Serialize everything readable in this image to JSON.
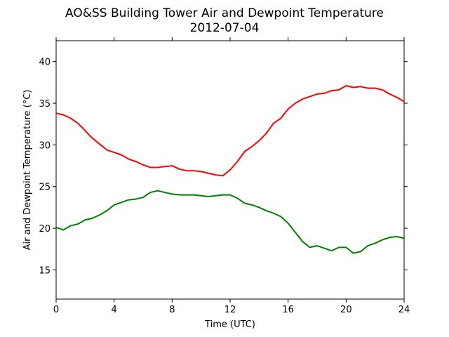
{
  "chart_data": {
    "type": "line",
    "title": "AO&SS Building Tower Air and Dewpoint Temperature",
    "subtitle": "2012-07-04",
    "xlabel": "Time (UTC)",
    "ylabel": "Air and Dewpoint Temperature (°C)",
    "xlim": [
      0,
      24
    ],
    "ylim": [
      11.5,
      42.5
    ],
    "xticks": [
      0,
      4,
      8,
      12,
      16,
      20,
      24
    ],
    "yticks": [
      15,
      20,
      25,
      30,
      35,
      40
    ],
    "grid": false,
    "legend": "none",
    "series": [
      {
        "color": "#ff0000",
        "x": [
          0,
          0.5,
          1,
          1.5,
          2,
          2.5,
          3,
          3.5,
          4,
          4.5,
          5,
          5.5,
          6,
          6.5,
          7,
          7.5,
          8,
          8.5,
          9,
          9.5,
          10,
          10.5,
          11,
          11.5,
          12,
          12.5,
          13,
          13.5,
          14,
          14.5,
          15,
          15.5,
          16,
          16.5,
          17,
          17.5,
          18,
          18.5,
          19,
          19.5,
          20,
          20.5,
          21,
          21.5,
          22,
          22.5,
          23,
          23.5,
          24
        ],
        "y": [
          33.8,
          33.6,
          33.2,
          32.6,
          31.7,
          30.8,
          30.1,
          29.4,
          29.1,
          28.8,
          28.3,
          28.0,
          27.6,
          27.3,
          27.3,
          27.4,
          27.5,
          27.1,
          26.9,
          26.9,
          26.8,
          26.6,
          26.4,
          26.3,
          27.0,
          28.0,
          29.2,
          29.8,
          30.5,
          31.4,
          32.6,
          33.2,
          34.3,
          35.0,
          35.5,
          35.8,
          36.1,
          36.2,
          36.5,
          36.6,
          37.1,
          36.9,
          37.0,
          36.8,
          36.8,
          36.6,
          36.1,
          35.7,
          35.2
        ]
      },
      {
        "color": "#008000",
        "x": [
          0,
          0.5,
          1,
          1.5,
          2,
          2.5,
          3,
          3.5,
          4,
          4.5,
          5,
          5.5,
          6,
          6.5,
          7,
          7.5,
          8,
          8.5,
          9,
          9.5,
          10,
          10.5,
          11,
          11.5,
          12,
          12.5,
          13,
          13.5,
          14,
          14.5,
          15,
          15.5,
          16,
          16.5,
          17,
          17.5,
          18,
          18.5,
          19,
          19.5,
          20,
          20.5,
          21,
          21.5,
          22,
          22.5,
          23,
          23.5,
          24
        ],
        "y": [
          20.1,
          19.8,
          20.3,
          20.5,
          21.0,
          21.2,
          21.6,
          22.1,
          22.8,
          23.1,
          23.4,
          23.5,
          23.7,
          24.3,
          24.5,
          24.3,
          24.1,
          24.0,
          24.0,
          24.0,
          23.9,
          23.8,
          23.9,
          24.0,
          24.0,
          23.6,
          23.0,
          22.8,
          22.5,
          22.1,
          21.8,
          21.4,
          20.6,
          19.5,
          18.4,
          17.7,
          17.9,
          17.6,
          17.3,
          17.7,
          17.7,
          17.0,
          17.2,
          17.9,
          18.2,
          18.6,
          18.9,
          19.0,
          18.8
        ]
      }
    ]
  }
}
